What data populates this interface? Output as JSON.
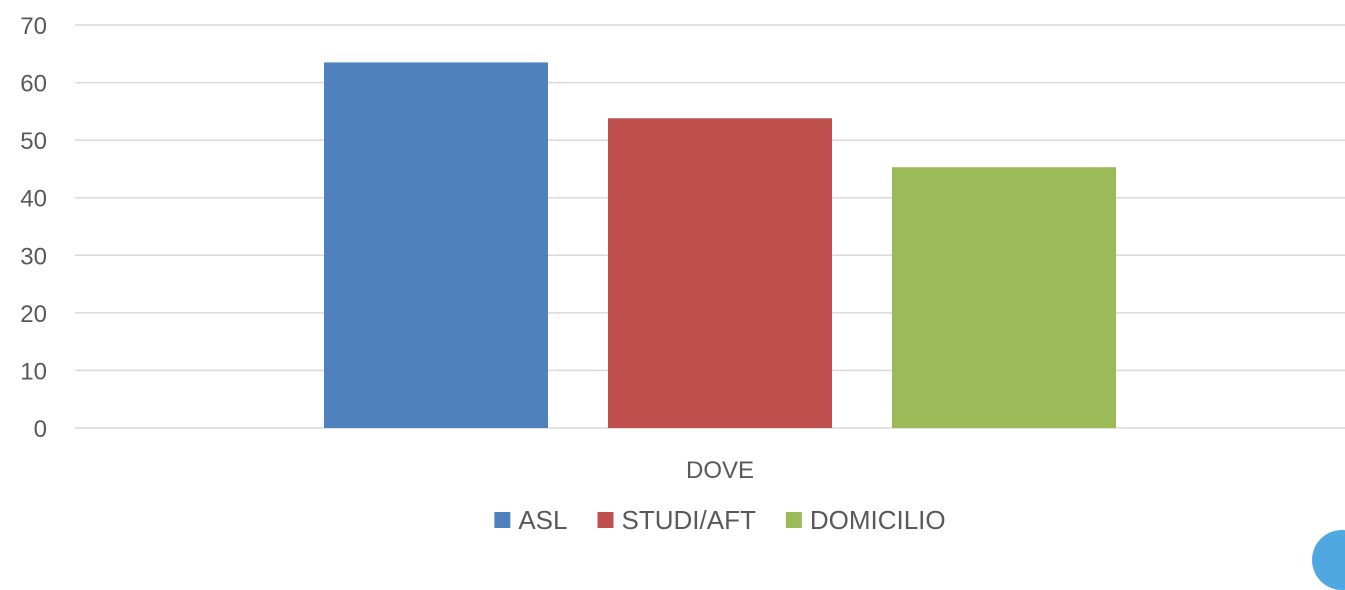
{
  "chart_data": {
    "type": "bar",
    "categories": [
      "DOVE"
    ],
    "series": [
      {
        "name": "ASL",
        "values": [
          63.5
        ],
        "color": "#4F81BD"
      },
      {
        "name": "STUDI/AFT",
        "values": [
          53.8
        ],
        "color": "#C0504D"
      },
      {
        "name": "DOMICILIO",
        "values": [
          45.3
        ],
        "color": "#9BBB59"
      }
    ],
    "title": "",
    "xlabel": "",
    "ylabel": "",
    "ylim": [
      0,
      70
    ],
    "yticks": [
      0,
      10,
      20,
      30,
      40,
      50,
      60,
      70
    ],
    "grid": true,
    "legend_position": "bottom"
  }
}
